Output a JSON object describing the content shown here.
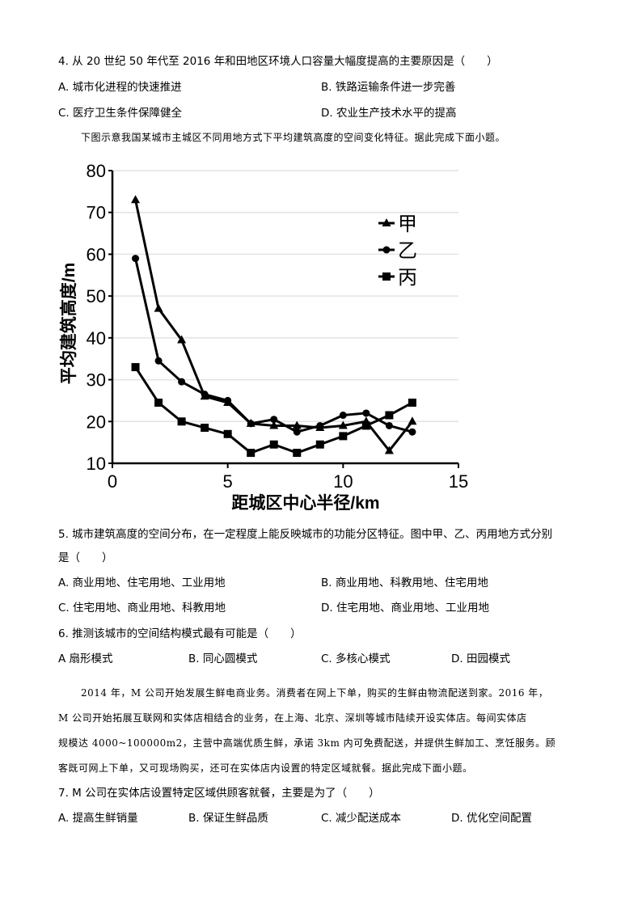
{
  "q4": {
    "stem": "4. 从 20 世纪 50 年代至 2016 年和田地区环境人口容量大幅度提高的主要原因是（　　）",
    "options": [
      "A. 城市化进程的快速推进",
      "B. 铁路运输条件进一步完善",
      "C. 医疗卫生条件保障健全",
      "D. 农业生产技术水平的提高"
    ]
  },
  "intro1": "下图示意我国某城市主城区不同用地方式下平均建筑高度的空间变化特征。据此完成下面小题。",
  "chart_data": {
    "type": "line",
    "title": "",
    "xlabel": "距城区中心半径/km",
    "ylabel": "平均建筑高度/m",
    "xlim": [
      0,
      15
    ],
    "ylim": [
      10,
      80
    ],
    "xticks": [
      0,
      5,
      10,
      15
    ],
    "yticks": [
      10,
      20,
      30,
      40,
      50,
      60,
      70,
      80
    ],
    "grid": "horizontal",
    "legend_position": "upper right",
    "x": [
      1,
      2,
      3,
      4,
      5,
      6,
      7,
      8,
      9,
      10,
      11,
      12,
      13
    ],
    "series": [
      {
        "name": "甲",
        "marker": "triangle",
        "values": [
          73,
          47,
          39.5,
          26,
          24.5,
          19.5,
          19,
          19,
          18.5,
          19,
          20,
          13,
          20
        ]
      },
      {
        "name": "乙",
        "marker": "circle",
        "values": [
          59,
          34.5,
          29.5,
          26.5,
          25,
          19.5,
          20.5,
          17.5,
          19,
          21.5,
          22,
          19,
          17.5
        ]
      },
      {
        "name": "丙",
        "marker": "square",
        "values": [
          33,
          24.5,
          20,
          18.5,
          17,
          12.5,
          14.5,
          12.5,
          14.5,
          16.5,
          19,
          21.5,
          24.5
        ]
      }
    ]
  },
  "q5": {
    "stem_line1": "5. 城市建筑高度的空间分布，在一定程度上能反映城市的功能分区特征。图中甲、乙、丙用地方式分别",
    "stem_line2": "是（　　）",
    "options": [
      "A. 商业用地、住宅用地、工业用地",
      "B. 商业用地、科教用地、住宅用地",
      "C. 住宅用地、商业用地、科教用地",
      "D. 住宅用地、商业用地、工业用地"
    ]
  },
  "q6": {
    "stem": "6. 推测该城市的空间结构模式最有可能是（　　）",
    "options": [
      "A  扇形模式",
      "B. 同心圆模式",
      "C. 多核心模式",
      "D. 田园模式"
    ]
  },
  "intro2": {
    "lines": [
      "2014 年，M 公司开始发展生鲜电商业务。消费者在网上下单，购买的生鲜由物流配送到家。2016 年，",
      "M 公司开始拓展互联网和实体店相结合的业务，在上海、北京、深圳等城市陆续开设实体店。每间实体店",
      "规模达 4000~100000m2，主营中高端优质生鲜，承诺 3km 内可免费配送，并提供生鲜加工、烹饪服务。顾",
      "客既可网上下单，又可现场购买，还可在实体店内设置的特定区域就餐。据此完成下面小题。"
    ]
  },
  "q7": {
    "stem": "7. M 公司在实体店设置特定区域供顾客就餐，主要是为了（　　）",
    "options": [
      "A. 提高生鲜销量",
      "B. 保证生鲜品质",
      "C. 减少配送成本",
      "D. 优化空间配置"
    ]
  }
}
